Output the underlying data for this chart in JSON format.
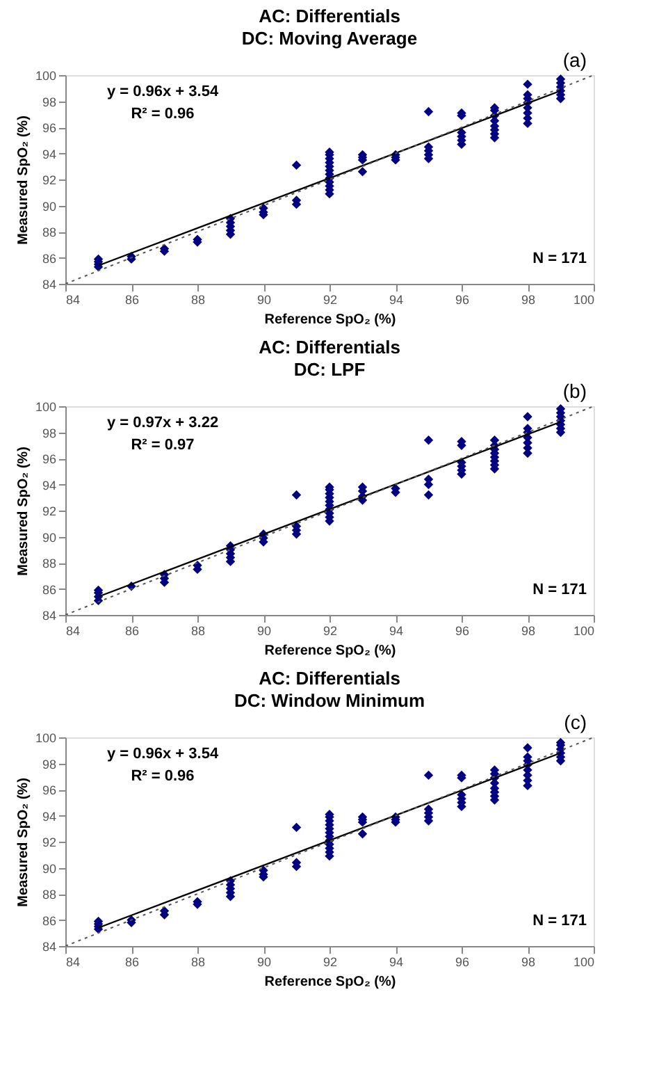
{
  "chart_data": [
    {
      "type": "scatter",
      "title": "AC: Differentials",
      "subtitle": "DC: Moving Average",
      "xlabel": "Reference SpO₂ (%)",
      "ylabel": "Measured SpO₂ (%)",
      "annotations": [
        "(a)",
        "y = 0.96x + 3.54",
        "R² = 0.96",
        "N = 171"
      ],
      "xlim": [
        84,
        100
      ],
      "ylim": [
        84,
        100
      ],
      "xticks": [
        84,
        86,
        88,
        90,
        92,
        94,
        96,
        98,
        100
      ],
      "yticks": [
        84,
        86,
        88,
        90,
        92,
        94,
        96,
        98,
        100
      ],
      "grid": false,
      "series": [
        {
          "marker": "diamond",
          "color": "#000080",
          "x": [
            85,
            85,
            85,
            85,
            86,
            86,
            87,
            87,
            88,
            88,
            89,
            89,
            89,
            89,
            89,
            90,
            90,
            90,
            91,
            91,
            91,
            92,
            92,
            92,
            92,
            92,
            92,
            92,
            92,
            92,
            92,
            92,
            92,
            93,
            93,
            93,
            93,
            94,
            94,
            94,
            95,
            95,
            95,
            95,
            95,
            96,
            96,
            96,
            96,
            96,
            96,
            97,
            97,
            97,
            97,
            97,
            97,
            97,
            97,
            98,
            98,
            98,
            98,
            98,
            98,
            98,
            98,
            99,
            99,
            99,
            99,
            99,
            99
          ],
          "values": [
            85.3,
            85.5,
            85.7,
            85.9,
            85.9,
            86.1,
            86.5,
            86.7,
            87.2,
            87.4,
            87.8,
            88.1,
            88.4,
            88.7,
            89.0,
            89.3,
            89.5,
            89.8,
            90.1,
            90.4,
            93.1,
            90.9,
            91.2,
            91.5,
            91.8,
            92.1,
            92.4,
            92.7,
            93.0,
            93.3,
            93.6,
            93.9,
            94.1,
            92.6,
            93.5,
            93.7,
            93.9,
            93.5,
            93.7,
            93.9,
            93.6,
            93.9,
            94.2,
            94.5,
            97.2,
            94.7,
            95.0,
            95.3,
            95.6,
            96.9,
            97.1,
            95.2,
            95.5,
            95.8,
            96.1,
            96.5,
            96.9,
            97.3,
            97.5,
            96.3,
            96.7,
            97.1,
            97.5,
            97.9,
            98.2,
            98.5,
            99.3,
            98.2,
            98.5,
            98.8,
            99.1,
            99.4,
            99.7
          ]
        },
        {
          "type": "line",
          "color": "#000000",
          "line_style": "solid",
          "x": [
            85,
            99
          ],
          "values": [
            85.4,
            98.8
          ]
        },
        {
          "type": "line",
          "color": "#555555",
          "line_style": "dotted",
          "x": [
            84,
            100
          ],
          "values": [
            84,
            100
          ]
        }
      ]
    },
    {
      "type": "scatter",
      "title": "AC: Differentials",
      "subtitle": "DC: LPF",
      "xlabel": "Reference SpO₂ (%)",
      "ylabel": "Measured SpO₂ (%)",
      "annotations": [
        "(b)",
        "y = 0.97x + 3.22",
        "R² = 0.97",
        "N = 171"
      ],
      "xlim": [
        84,
        100
      ],
      "ylim": [
        84,
        100
      ],
      "xticks": [
        84,
        86,
        88,
        90,
        92,
        94,
        96,
        98,
        100
      ],
      "yticks": [
        84,
        86,
        88,
        90,
        92,
        94,
        96,
        98,
        100
      ],
      "grid": false,
      "series": [
        {
          "marker": "diamond",
          "color": "#000080",
          "x": [
            85,
            85,
            85,
            85,
            86,
            87,
            87,
            87,
            88,
            88,
            89,
            89,
            89,
            89,
            89,
            90,
            90,
            90,
            91,
            91,
            91,
            91,
            92,
            92,
            92,
            92,
            92,
            92,
            92,
            92,
            92,
            92,
            93,
            93,
            93,
            93,
            94,
            94,
            95,
            95,
            95,
            95,
            96,
            96,
            96,
            96,
            96,
            96,
            97,
            97,
            97,
            97,
            97,
            97,
            97,
            97,
            98,
            98,
            98,
            98,
            98,
            98,
            98,
            99,
            99,
            99,
            99,
            99,
            99,
            99
          ],
          "values": [
            85.1,
            85.4,
            85.7,
            85.9,
            86.2,
            86.5,
            86.8,
            87.1,
            87.5,
            87.8,
            88.1,
            88.4,
            88.7,
            89.0,
            89.3,
            89.6,
            89.9,
            90.2,
            90.2,
            90.5,
            90.8,
            93.2,
            91.2,
            91.5,
            91.8,
            92.1,
            92.4,
            92.7,
            93.0,
            93.3,
            93.6,
            93.8,
            92.8,
            93.1,
            93.5,
            93.8,
            93.4,
            93.7,
            93.2,
            94.0,
            94.4,
            97.4,
            94.8,
            95.1,
            95.4,
            95.7,
            97.0,
            97.3,
            95.2,
            95.5,
            95.8,
            96.1,
            96.4,
            96.7,
            97.0,
            97.4,
            96.4,
            96.8,
            97.2,
            97.6,
            98.0,
            98.3,
            99.2,
            98.0,
            98.3,
            98.6,
            98.9,
            99.2,
            99.5,
            99.8
          ]
        },
        {
          "type": "line",
          "color": "#000000",
          "line_style": "solid",
          "x": [
            85,
            99
          ],
          "values": [
            85.4,
            98.8
          ]
        },
        {
          "type": "line",
          "color": "#555555",
          "line_style": "dotted",
          "x": [
            84,
            100
          ],
          "values": [
            84,
            100
          ]
        }
      ]
    },
    {
      "type": "scatter",
      "title": "AC: Differentials",
      "subtitle": "DC: Window Minimum",
      "xlabel": "Reference SpO₂ (%)",
      "ylabel": "Measured SpO₂ (%)",
      "annotations": [
        "(c)",
        "y = 0.96x + 3.54",
        "R² = 0.96",
        "N = 171"
      ],
      "xlim": [
        84,
        100
      ],
      "ylim": [
        84,
        100
      ],
      "xticks": [
        84,
        86,
        88,
        90,
        92,
        94,
        96,
        98,
        100
      ],
      "yticks": [
        84,
        86,
        88,
        90,
        92,
        94,
        96,
        98,
        100
      ],
      "grid": false,
      "series": [
        {
          "marker": "diamond",
          "color": "#000080",
          "x": [
            85,
            85,
            85,
            85,
            86,
            86,
            87,
            87,
            88,
            88,
            89,
            89,
            89,
            89,
            89,
            90,
            90,
            90,
            91,
            91,
            91,
            92,
            92,
            92,
            92,
            92,
            92,
            92,
            92,
            92,
            92,
            92,
            92,
            93,
            93,
            93,
            93,
            94,
            94,
            94,
            95,
            95,
            95,
            95,
            95,
            96,
            96,
            96,
            96,
            96,
            96,
            97,
            97,
            97,
            97,
            97,
            97,
            97,
            97,
            98,
            98,
            98,
            98,
            98,
            98,
            98,
            98,
            99,
            99,
            99,
            99,
            99,
            99
          ],
          "values": [
            85.3,
            85.5,
            85.7,
            85.9,
            85.8,
            86.0,
            86.4,
            86.7,
            87.2,
            87.4,
            87.8,
            88.1,
            88.4,
            88.7,
            89.0,
            89.3,
            89.5,
            89.8,
            90.1,
            90.4,
            93.1,
            90.9,
            91.2,
            91.5,
            91.8,
            92.1,
            92.4,
            92.7,
            93.0,
            93.3,
            93.6,
            93.9,
            94.1,
            92.6,
            93.5,
            93.7,
            93.9,
            93.5,
            93.7,
            93.9,
            93.6,
            93.9,
            94.2,
            94.5,
            97.1,
            94.7,
            95.0,
            95.3,
            95.6,
            96.9,
            97.1,
            95.2,
            95.5,
            95.8,
            96.1,
            96.5,
            96.9,
            97.2,
            97.5,
            96.3,
            96.7,
            97.1,
            97.5,
            97.9,
            98.2,
            98.5,
            99.2,
            98.2,
            98.5,
            98.8,
            99.1,
            99.4,
            99.6
          ]
        },
        {
          "type": "line",
          "color": "#000000",
          "line_style": "solid",
          "x": [
            85,
            99
          ],
          "values": [
            85.4,
            98.8
          ]
        },
        {
          "type": "line",
          "color": "#555555",
          "line_style": "dotted",
          "x": [
            84,
            100
          ],
          "values": [
            84,
            100
          ]
        }
      ]
    }
  ]
}
